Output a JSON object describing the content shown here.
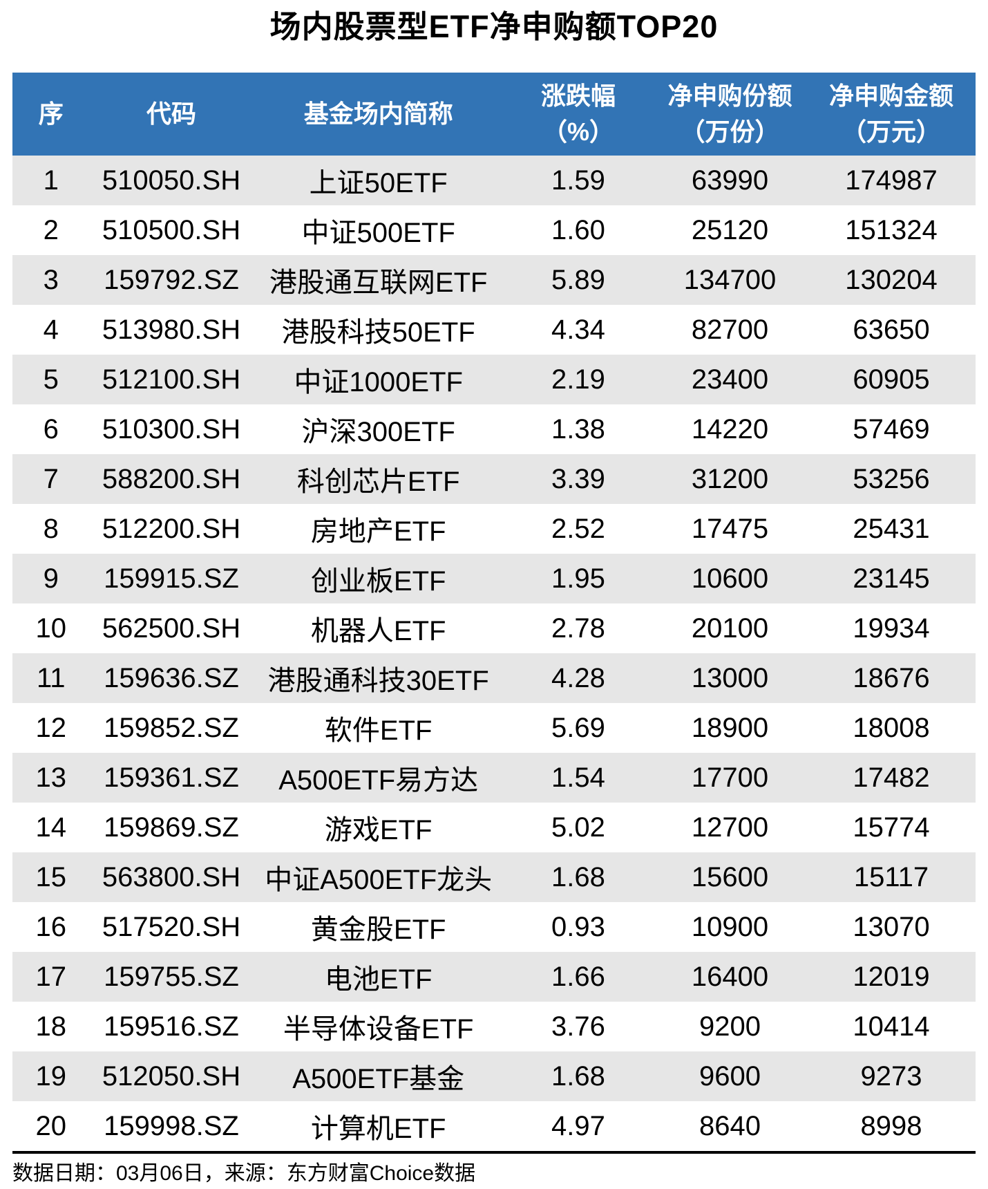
{
  "title": "场内股票型ETF净申购额TOP20",
  "header": {
    "col_rank": "序",
    "col_code": "代码",
    "col_name": "基金场内简称",
    "col_change_l1": "涨跌幅",
    "col_change_l2": "（%）",
    "col_shares_l1": "净申购份额",
    "col_shares_l2": "（万份）",
    "col_amount_l1": "净申购金额",
    "col_amount_l2": "（万元）"
  },
  "footer": {
    "text": "数据日期：03月06日，来源：东方财富Choice数据"
  },
  "colors": {
    "header_bg": "#3274B5",
    "header_text": "#FFFFFF",
    "stripe_bg": "#E6E6E6",
    "bottom_rule": "#000000"
  },
  "chart_data": {
    "type": "table",
    "title": "场内股票型ETF净申购额TOP20",
    "columns": [
      "序",
      "代码",
      "基金场内简称",
      "涨跌幅（%）",
      "净申购份额（万份）",
      "净申购金额（万元）"
    ],
    "rows": [
      [
        "1",
        "510050.SH",
        "上证50ETF",
        "1.59",
        "63990",
        "174987"
      ],
      [
        "2",
        "510500.SH",
        "中证500ETF",
        "1.60",
        "25120",
        "151324"
      ],
      [
        "3",
        "159792.SZ",
        "港股通互联网ETF",
        "5.89",
        "134700",
        "130204"
      ],
      [
        "4",
        "513980.SH",
        "港股科技50ETF",
        "4.34",
        "82700",
        "63650"
      ],
      [
        "5",
        "512100.SH",
        "中证1000ETF",
        "2.19",
        "23400",
        "60905"
      ],
      [
        "6",
        "510300.SH",
        "沪深300ETF",
        "1.38",
        "14220",
        "57469"
      ],
      [
        "7",
        "588200.SH",
        "科创芯片ETF",
        "3.39",
        "31200",
        "53256"
      ],
      [
        "8",
        "512200.SH",
        "房地产ETF",
        "2.52",
        "17475",
        "25431"
      ],
      [
        "9",
        "159915.SZ",
        "创业板ETF",
        "1.95",
        "10600",
        "23145"
      ],
      [
        "10",
        "562500.SH",
        "机器人ETF",
        "2.78",
        "20100",
        "19934"
      ],
      [
        "11",
        "159636.SZ",
        "港股通科技30ETF",
        "4.28",
        "13000",
        "18676"
      ],
      [
        "12",
        "159852.SZ",
        "软件ETF",
        "5.69",
        "18900",
        "18008"
      ],
      [
        "13",
        "159361.SZ",
        "A500ETF易方达",
        "1.54",
        "17700",
        "17482"
      ],
      [
        "14",
        "159869.SZ",
        "游戏ETF",
        "5.02",
        "12700",
        "15774"
      ],
      [
        "15",
        "563800.SH",
        "中证A500ETF龙头",
        "1.68",
        "15600",
        "15117"
      ],
      [
        "16",
        "517520.SH",
        "黄金股ETF",
        "0.93",
        "10900",
        "13070"
      ],
      [
        "17",
        "159755.SZ",
        "电池ETF",
        "1.66",
        "16400",
        "12019"
      ],
      [
        "18",
        "159516.SZ",
        "半导体设备ETF",
        "3.76",
        "9200",
        "10414"
      ],
      [
        "19",
        "512050.SH",
        "A500ETF基金",
        "1.68",
        "9600",
        "9273"
      ],
      [
        "20",
        "159998.SZ",
        "计算机ETF",
        "4.97",
        "8640",
        "8998"
      ]
    ]
  }
}
